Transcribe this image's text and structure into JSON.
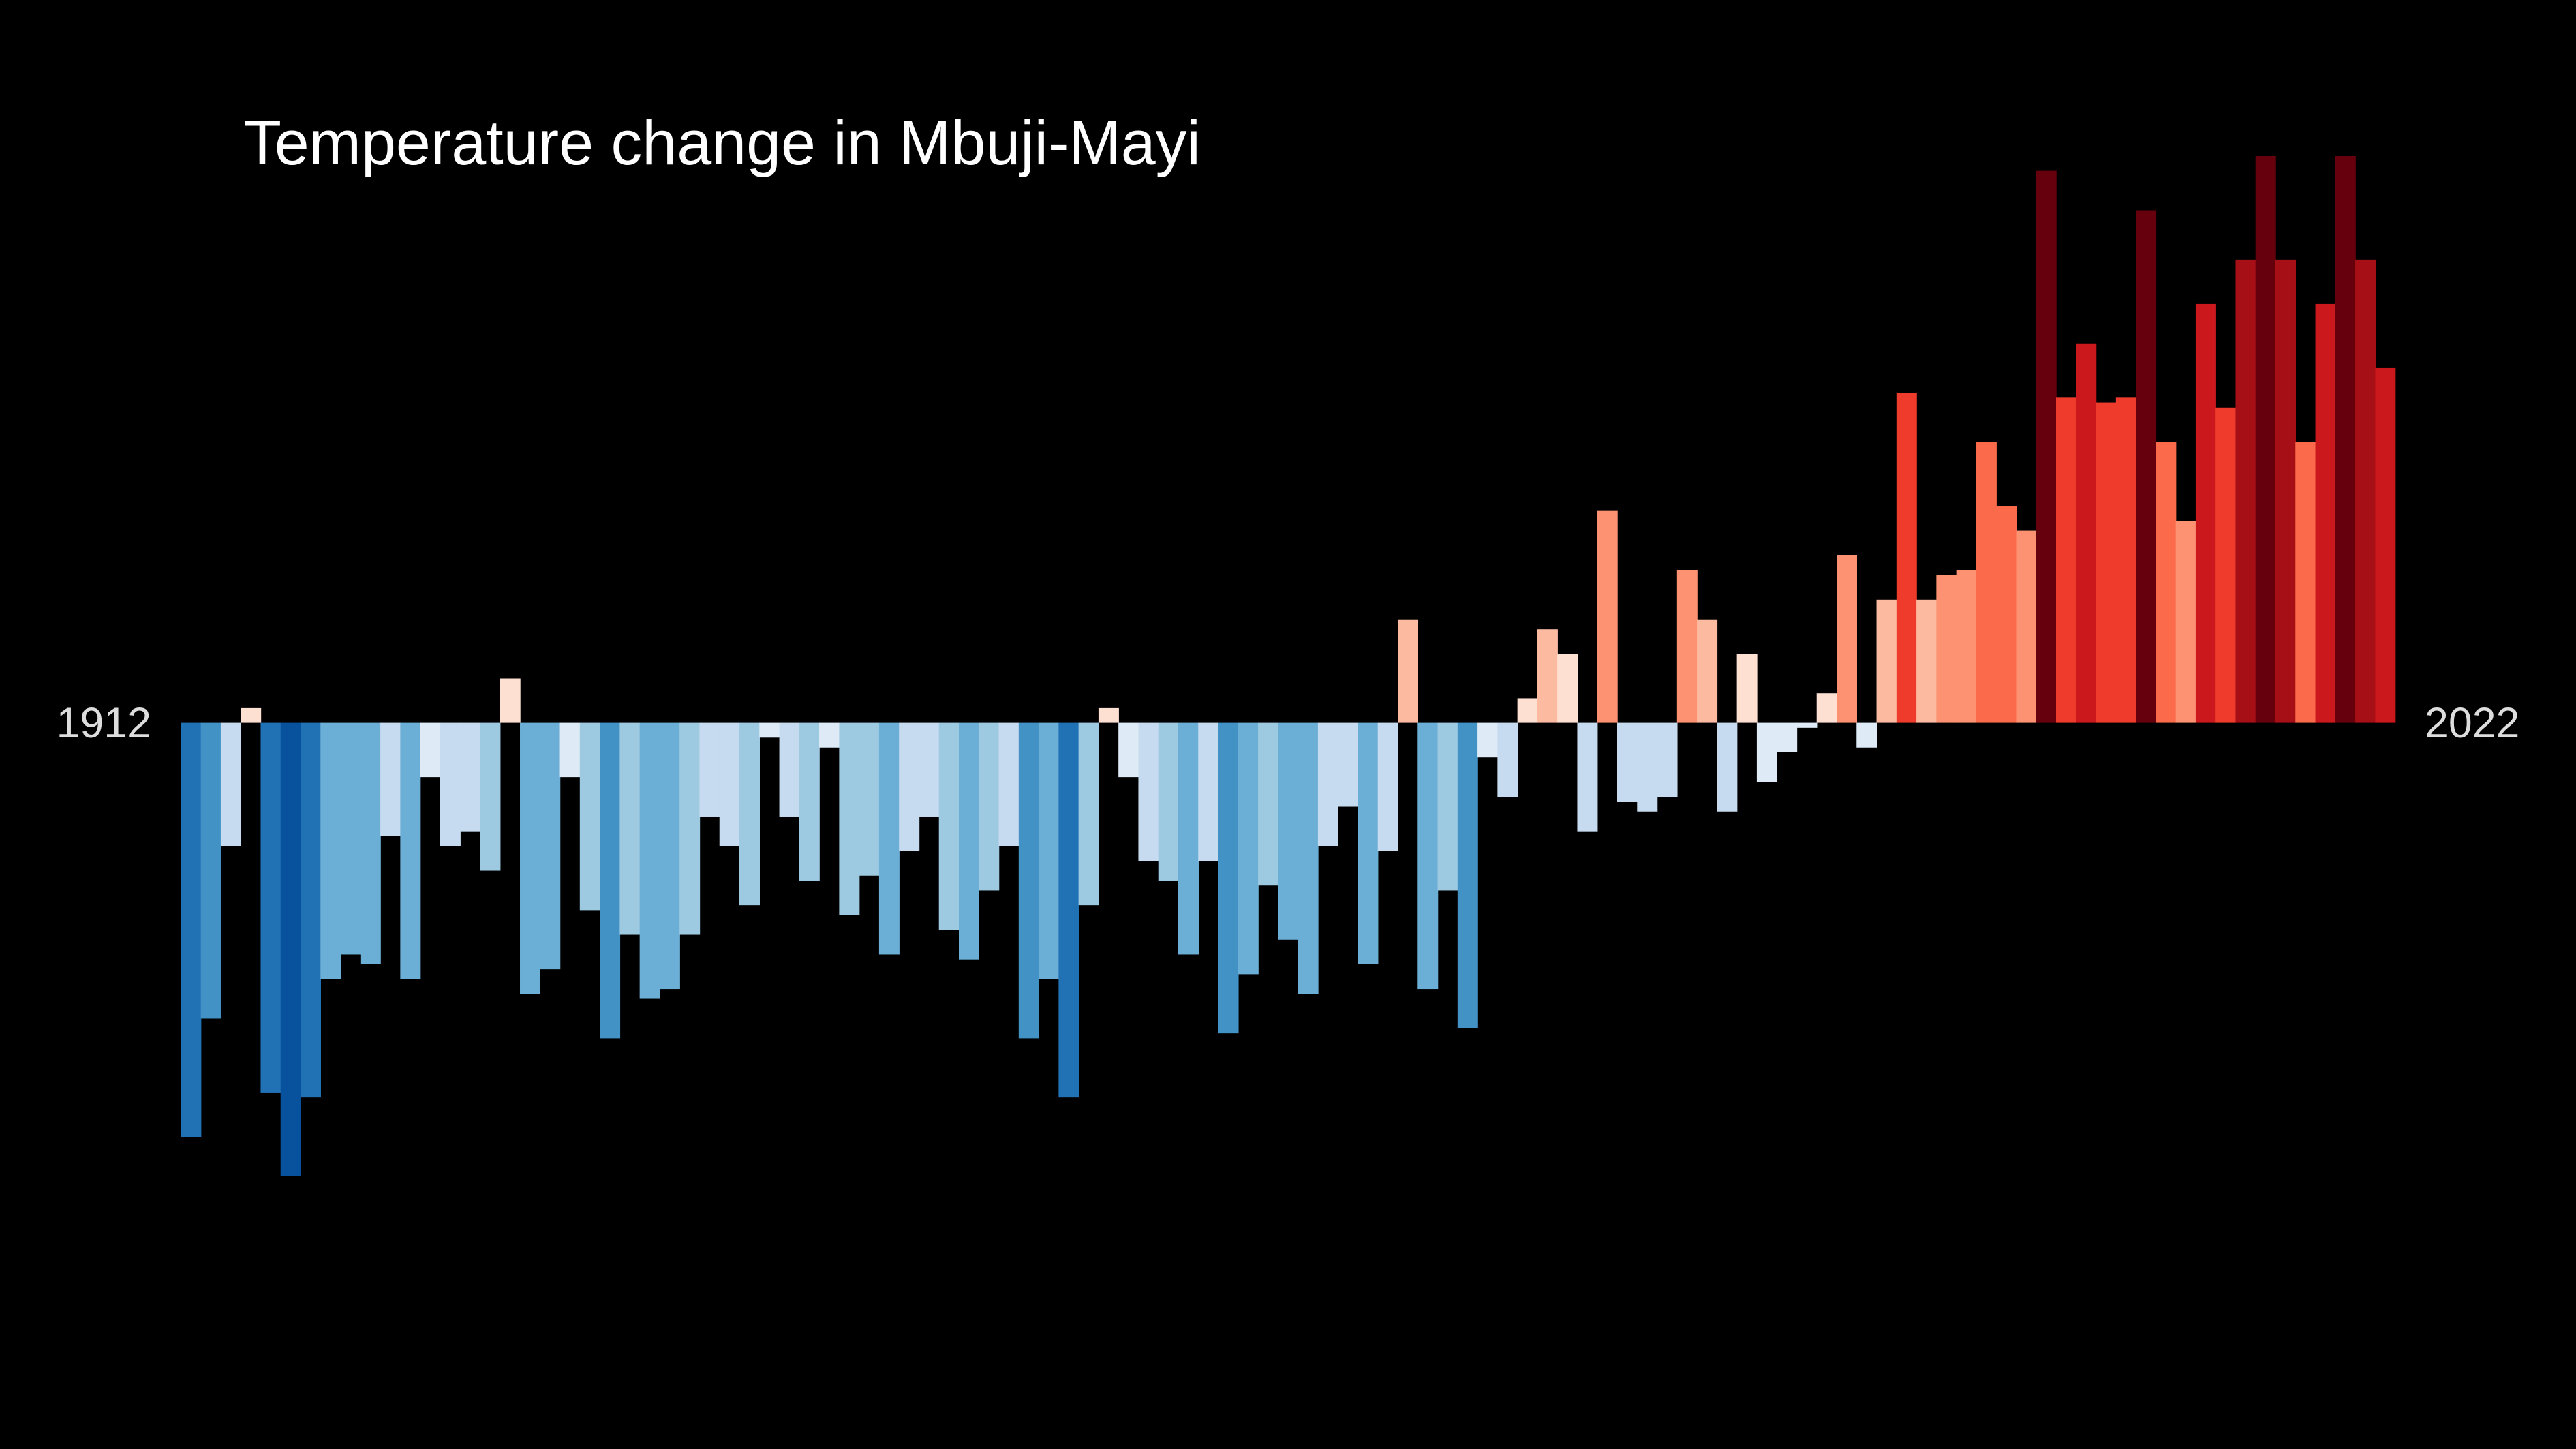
{
  "chart_data": {
    "type": "bar",
    "title": "Temperature change in Mbuji-Mayi",
    "categories": [
      "1912",
      null,
      null,
      null,
      null,
      null,
      null,
      null,
      null,
      null,
      null,
      null,
      null,
      null,
      null,
      null,
      null,
      null,
      null,
      null,
      null,
      null,
      null,
      null,
      null,
      null,
      null,
      null,
      null,
      null,
      null,
      null,
      null,
      null,
      null,
      null,
      null,
      null,
      null,
      null,
      null,
      null,
      null,
      null,
      null,
      null,
      null,
      null,
      null,
      null,
      null,
      null,
      null,
      null,
      null,
      null,
      null,
      null,
      null,
      null,
      null,
      null,
      null,
      null,
      null,
      null,
      null,
      null,
      null,
      null,
      null,
      null,
      null,
      null,
      null,
      null,
      null,
      null,
      null,
      null,
      null,
      null,
      null,
      null,
      null,
      null,
      null,
      null,
      null,
      null,
      null,
      null,
      null,
      null,
      null,
      null,
      null,
      null,
      null,
      null,
      null,
      null,
      null,
      null,
      null,
      null,
      null,
      null,
      null,
      null,
      "2022"
    ],
    "values": [
      -0.84,
      -0.6,
      -0.25,
      0.03,
      -0.75,
      -0.92,
      -0.76,
      -0.52,
      -0.47,
      -0.49,
      -0.23,
      -0.52,
      -0.11,
      -0.25,
      -0.22,
      -0.3,
      0.09,
      -0.55,
      -0.5,
      -0.11,
      -0.38,
      -0.64,
      -0.43,
      -0.56,
      -0.54,
      -0.43,
      -0.19,
      -0.25,
      -0.37,
      -0.03,
      -0.19,
      -0.32,
      -0.05,
      -0.39,
      -0.31,
      -0.47,
      -0.26,
      -0.19,
      -0.42,
      -0.48,
      -0.34,
      -0.25,
      -0.64,
      -0.52,
      -0.76,
      -0.37,
      0.03,
      -0.11,
      -0.28,
      -0.32,
      -0.47,
      -0.28,
      -0.63,
      -0.51,
      -0.33,
      -0.44,
      -0.55,
      -0.25,
      -0.17,
      -0.49,
      -0.26,
      0.21,
      -0.54,
      -0.34,
      -0.62,
      -0.07,
      -0.15,
      0.05,
      0.19,
      0.14,
      -0.22,
      0.43,
      -0.16,
      -0.18,
      -0.15,
      0.31,
      0.21,
      -0.18,
      0.14,
      -0.12,
      -0.06,
      -0.01,
      0.06,
      0.34,
      -0.05,
      0.25,
      0.67,
      0.25,
      0.3,
      0.31,
      0.57,
      0.44,
      0.39,
      1.12,
      0.66,
      0.77,
      0.65,
      0.66,
      1.04,
      0.57,
      0.41,
      0.85,
      0.64,
      0.94,
      1.15,
      0.94,
      0.57,
      0.85,
      1.15,
      0.94,
      0.72
    ],
    "palette": [
      "#08306b",
      "#08519c",
      "#2171b5",
      "#4292c6",
      "#6baed6",
      "#9ecae1",
      "#c6dbef",
      "#deebf7",
      "#fee0d2",
      "#fcbba1",
      "#fc9272",
      "#fb6a4a",
      "#ef3b2c",
      "#cb181d",
      "#a50f15",
      "#67000d"
    ]
  }
}
